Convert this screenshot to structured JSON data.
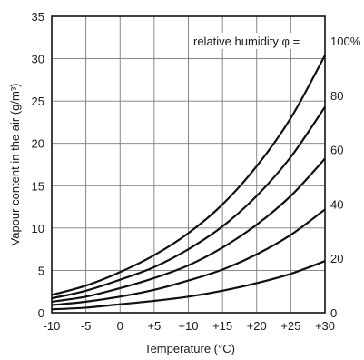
{
  "chart_data": {
    "type": "line",
    "xlabel": "Temperature (°C)",
    "ylabel": "Vapour content in the air (g/m³)",
    "x_ticks": [
      -10,
      -5,
      0,
      5,
      10,
      15,
      20,
      25,
      30
    ],
    "x_tick_labels": [
      "-10",
      "-5",
      "0",
      "+5",
      "+10",
      "+15",
      "+20",
      "+25",
      "+30"
    ],
    "y_ticks": [
      0,
      5,
      10,
      15,
      20,
      25,
      30,
      35
    ],
    "y_tick_labels": [
      "0",
      "5",
      "10",
      "15",
      "20",
      "25",
      "30",
      "35"
    ],
    "xlim": [
      -10,
      30
    ],
    "ylim": [
      0,
      35
    ],
    "grid": true,
    "right_axis_labels": [
      "0",
      "20",
      "40",
      "60",
      "80",
      "100%"
    ],
    "annotation": "relative humidity φ =",
    "x": [
      -10,
      -5,
      0,
      5,
      10,
      15,
      20,
      25,
      30
    ],
    "series": [
      {
        "values": [
          2.1,
          3.2,
          4.8,
          6.8,
          9.4,
          12.8,
          17.3,
          23.0,
          30.4
        ]
      },
      {
        "values": [
          1.7,
          2.6,
          3.9,
          5.4,
          7.5,
          10.2,
          13.8,
          18.4,
          24.3
        ]
      },
      {
        "values": [
          1.3,
          1.9,
          2.9,
          4.1,
          5.6,
          7.7,
          10.4,
          13.8,
          18.2
        ]
      },
      {
        "values": [
          0.9,
          1.3,
          1.9,
          2.7,
          3.8,
          5.1,
          6.9,
          9.2,
          12.2
        ]
      },
      {
        "values": [
          0.4,
          0.6,
          1.0,
          1.4,
          1.9,
          2.6,
          3.5,
          4.6,
          6.1
        ]
      }
    ]
  }
}
